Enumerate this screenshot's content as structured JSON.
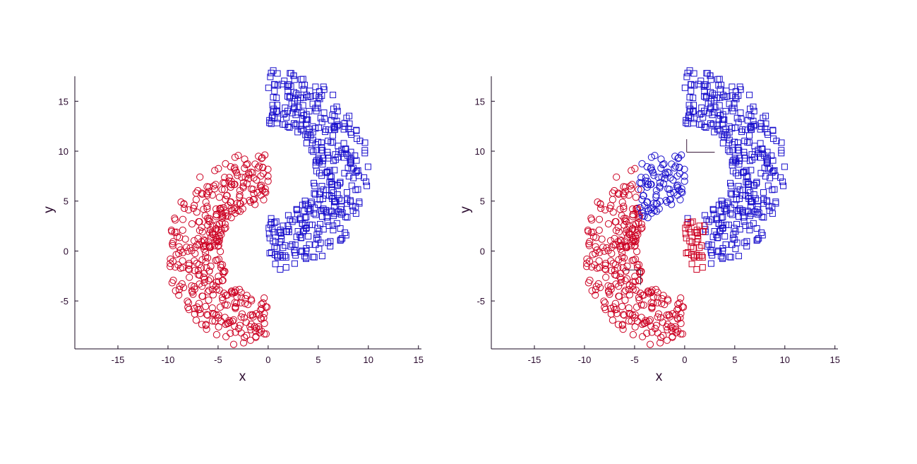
{
  "chart_data": [
    {
      "type": "scatter",
      "title": "",
      "xlabel": "x",
      "ylabel": "y",
      "xlim": [
        -19.3,
        15.3
      ],
      "ylim": [
        -9.8,
        17.5
      ],
      "xticks": [
        -15,
        -10,
        -5,
        0,
        5,
        10,
        15
      ],
      "yticks": [
        -5,
        0,
        5,
        10,
        15
      ],
      "grid": false,
      "classes": [
        {
          "marker": "circle",
          "color": "#cc0022",
          "region": "lower-left moon (all points)"
        },
        {
          "marker": "square",
          "color": "#1a10cc",
          "region": "upper-right moon (all points)"
        }
      ],
      "moons": {
        "lower": {
          "center_x": 0.0,
          "center_y": 0.0,
          "radius": 7.4,
          "width": 5.4,
          "color": "#cc0022",
          "marker": "circle",
          "count": 420
        },
        "upper": {
          "center_x": 0.0,
          "center_y": 8.0,
          "radius": 7.4,
          "width": 5.4,
          "color": "#1a10cc",
          "marker": "square",
          "count": 420
        }
      }
    },
    {
      "type": "scatter",
      "title": "",
      "xlabel": "x",
      "ylabel": "y",
      "xlim": [
        -19.3,
        15.3
      ],
      "ylim": [
        -9.8,
        17.5
      ],
      "xticks": [
        -15,
        -10,
        -5,
        0,
        5,
        10,
        15
      ],
      "yticks": [
        -5,
        0,
        5,
        10,
        15
      ],
      "grid": false,
      "boundary_lines": [
        {
          "from": [
            0.2,
            11.2
          ],
          "to": [
            0.2,
            9.9
          ]
        },
        {
          "from": [
            0.2,
            9.9
          ],
          "to": [
            3.0,
            9.9
          ]
        },
        {
          "from": [
            -4.4,
            -1.9
          ],
          "to": [
            -4.4,
            -3.4
          ]
        },
        {
          "from": [
            -4.4,
            -1.9
          ],
          "to": [
            -6.0,
            -1.9
          ]
        }
      ],
      "misclassified_regions": [
        {
          "description": "inner tip of lower moon drawn as blue circles",
          "true_moon": "lower",
          "x_min": -4.5,
          "x_max": 2.0,
          "y_min": 3.0,
          "y_max": 10.0,
          "color": "#1a10cc",
          "marker": "circle"
        },
        {
          "description": "inner tip of upper moon drawn as red squares",
          "true_moon": "upper",
          "x_min": -5.0,
          "x_max": 2.0,
          "y_min": -2.5,
          "y_max": 3.0,
          "color": "#cc0022",
          "marker": "square"
        }
      ],
      "moons": {
        "lower": {
          "center_x": 0.0,
          "center_y": 0.0,
          "radius": 7.4,
          "width": 5.4,
          "color": "#cc0022",
          "marker": "circle",
          "count": 420
        },
        "upper": {
          "center_x": 0.0,
          "center_y": 8.0,
          "radius": 7.4,
          "width": 5.4,
          "color": "#1a10cc",
          "marker": "square",
          "count": 420
        }
      }
    }
  ]
}
